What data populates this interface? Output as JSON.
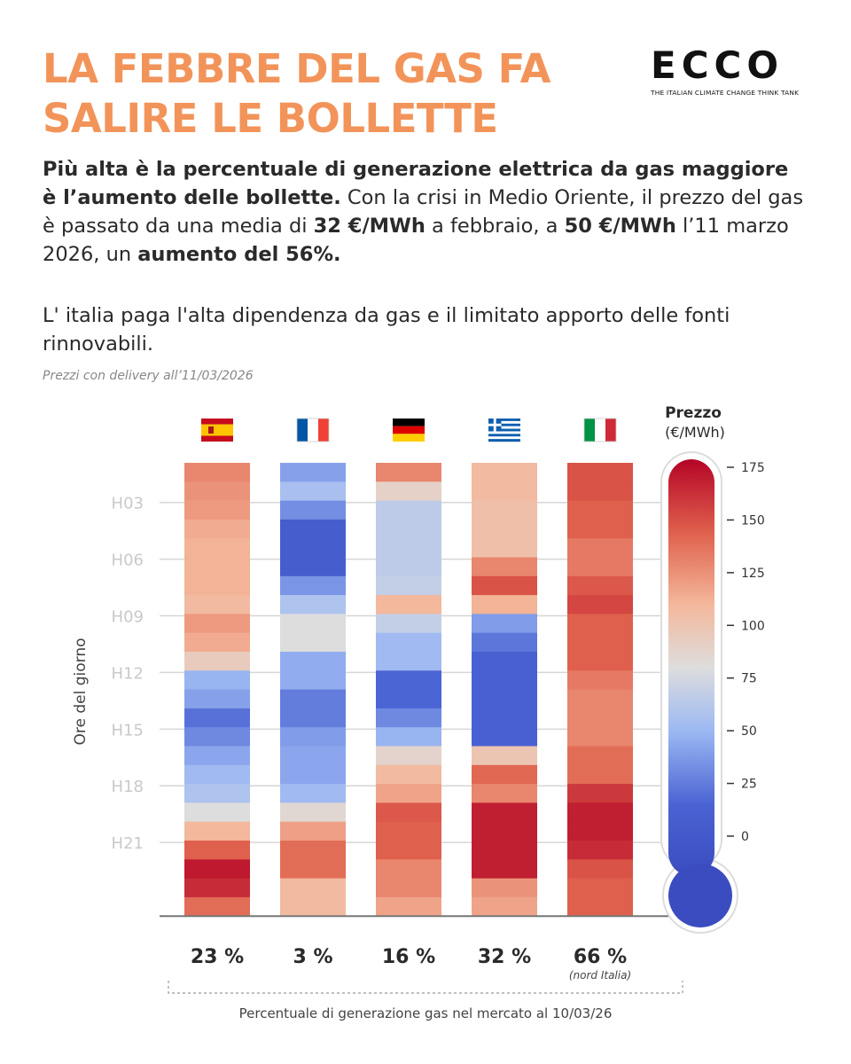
{
  "title": {
    "line1": "LA FEBBRE DEL GAS FA",
    "line2": "SALIRE LE BOLLETTE"
  },
  "logo": {
    "word": "ECCO",
    "tagline": "THE ITALIAN CLIMATE CHANGE THINK TANK"
  },
  "intro": {
    "bold1": "Più alta è la percentuale di generazione elettrica da gas maggiore è l’aumento delle bollette.",
    "text1": " Con la crisi in Medio Oriente, il prezzo del gas è passato da una media di ",
    "bold2": "32 €/MWh",
    "text2": " a febbraio, a ",
    "bold3": "50 €/MWh",
    "text3": " l’11 marzo 2026, un ",
    "bold4": "aumento del 56%."
  },
  "intro2": "L' italia paga l'alta dipendenza da gas e il  limitato apporto delle fonti rinnovabili.",
  "delivery_note": "Prezzi con delivery all’11/03/2026",
  "footer_label": "Percentuale di generazione gas nel mercato al 10/03/26",
  "colors": {
    "accent": "#f2945a",
    "cold": "#3b4cc0",
    "neutral": "#dddddd",
    "hot": "#b40426"
  },
  "chart_data": {
    "type": "heatmap",
    "ylabel": "Ore del giorno",
    "yticks": [
      "H03",
      "H06",
      "H09",
      "H12",
      "H15",
      "H18",
      "H21"
    ],
    "hours": 24,
    "colorbar": {
      "title": "Prezzo",
      "unit": "(€/MWh)",
      "ticks": [
        175,
        150,
        125,
        100,
        75,
        50,
        25,
        0
      ],
      "range": [
        -20,
        180
      ]
    },
    "countries": [
      {
        "name": "Spagna",
        "flag": "es",
        "gas_share": "23 %",
        "note": "",
        "prices": [
          130,
          125,
          122,
          115,
          112,
          112,
          112,
          108,
          122,
          115,
          95,
          48,
          40,
          20,
          30,
          42,
          52,
          58,
          80,
          110,
          145,
          172,
          165,
          140
        ]
      },
      {
        "name": "Francia",
        "flag": "fr",
        "gas_share": "3 %",
        "note": "",
        "prices": [
          40,
          55,
          32,
          5,
          5,
          5,
          35,
          58,
          80,
          80,
          45,
          45,
          25,
          25,
          38,
          42,
          42,
          52,
          85,
          120,
          140,
          140,
          108,
          108
        ]
      },
      {
        "name": "Germania",
        "flag": "de",
        "gas_share": "16 %",
        "note": "",
        "prices": [
          130,
          90,
          65,
          65,
          65,
          65,
          68,
          110,
          68,
          52,
          52,
          15,
          15,
          30,
          48,
          88,
          108,
          118,
          148,
          145,
          145,
          130,
          130,
          118
        ]
      },
      {
        "name": "Grecia",
        "flag": "gr",
        "gas_share": "32 %",
        "note": "",
        "prices": [
          108,
          108,
          104,
          104,
          104,
          130,
          150,
          112,
          38,
          22,
          10,
          10,
          10,
          10,
          10,
          100,
          142,
          130,
          170,
          170,
          170,
          170,
          125,
          118
        ]
      },
      {
        "name": "Italia",
        "flag": "it",
        "gas_share": "66 %",
        "note": "(nord Italia)",
        "prices": [
          150,
          150,
          145,
          145,
          135,
          135,
          148,
          155,
          145,
          145,
          145,
          135,
          130,
          130,
          130,
          140,
          140,
          160,
          170,
          170,
          165,
          150,
          145,
          145
        ]
      }
    ]
  }
}
